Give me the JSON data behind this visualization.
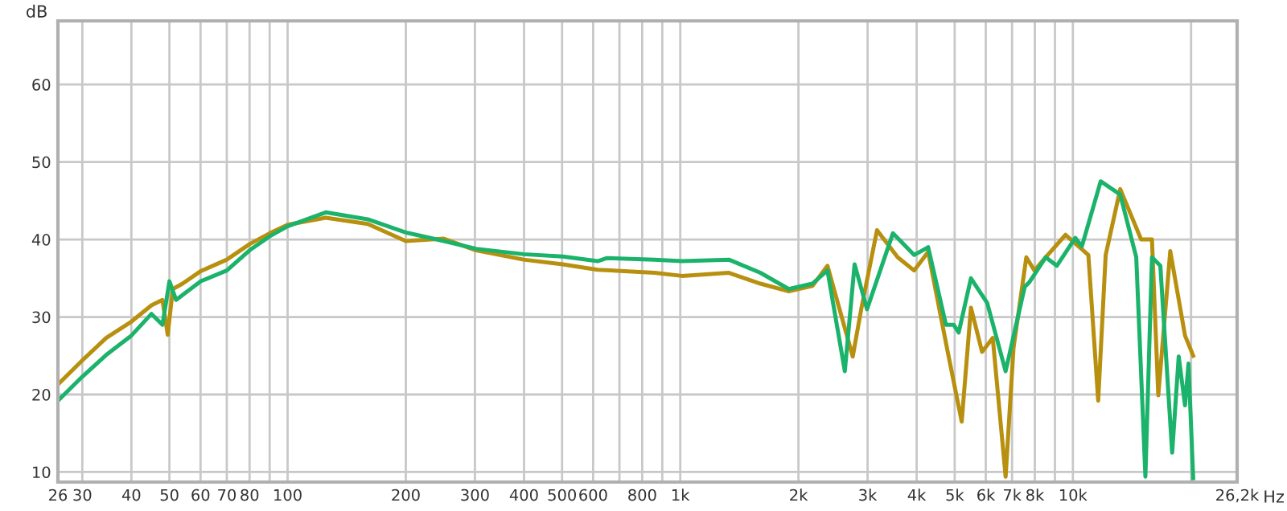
{
  "chart_data": {
    "type": "line",
    "ylabel": "dB",
    "xlabel": "Hz",
    "log": "x",
    "grid": true,
    "marker": "none",
    "line_style": "solid",
    "xlim": [
      26,
      26200
    ],
    "ylim": [
      8.7,
      68.2
    ],
    "xticks": [
      26,
      30,
      40,
      50,
      60,
      70,
      80,
      {
        "value": 90,
        "label": null
      },
      100,
      200,
      300,
      400,
      500,
      600,
      {
        "value": 700,
        "label": null
      },
      800,
      {
        "value": 900,
        "label": null
      },
      {
        "value": 1000,
        "label": "1k"
      },
      {
        "value": 2000,
        "label": "2k"
      },
      {
        "value": 3000,
        "label": "3k"
      },
      {
        "value": 4000,
        "label": "4k"
      },
      {
        "value": 5000,
        "label": "5k"
      },
      {
        "value": 6000,
        "label": "6k"
      },
      {
        "value": 7000,
        "label": "7k"
      },
      {
        "value": 8000,
        "label": "8k"
      },
      {
        "value": 9000,
        "label": null
      },
      {
        "value": 10000,
        "label": "10k"
      },
      {
        "value": 20000,
        "label": null
      },
      {
        "value": 26200,
        "label": "26,2k"
      }
    ],
    "yticks": [
      10,
      20,
      30,
      40,
      50,
      60
    ],
    "series": [
      {
        "color": "#b8900f",
        "x": [
          26,
          30,
          34.5,
          40,
          45,
          48,
          49.5,
          51,
          54,
          60,
          70,
          80,
          90,
          100,
          125,
          160,
          200,
          250,
          302,
          399,
          502,
          616,
          860,
          1010,
          1330,
          1600,
          1890,
          2170,
          2371,
          2750,
          2890,
          3170,
          3580,
          3940,
          4280,
          4800,
          5210,
          5500,
          5870,
          6250,
          6740,
          7060,
          7610,
          7980,
          8530,
          9580,
          10950,
          11600,
          12120,
          13200,
          14920,
          15900,
          16500,
          17700,
          19300,
          20250
        ],
        "values": [
          21.3,
          24.4,
          27.3,
          29.4,
          31.5,
          32.2,
          27.7,
          33.6,
          34.3,
          35.9,
          37.4,
          39.4,
          40.8,
          41.9,
          42.8,
          42.0,
          39.8,
          40.1,
          38.6,
          37.4,
          36.8,
          36.1,
          35.7,
          35.3,
          35.7,
          34.3,
          33.3,
          34.0,
          36.6,
          24.9,
          31.0,
          41.2,
          37.7,
          36.0,
          38.4,
          25.5,
          16.5,
          31.2,
          25.5,
          27.3,
          9.4,
          26.0,
          37.7,
          36.0,
          37.7,
          40.6,
          38.0,
          19.2,
          38.0,
          46.5,
          40.0,
          40.0,
          19.9,
          38.5,
          27.6,
          25.0
        ]
      },
      {
        "color": "#1bb36b",
        "x": [
          26,
          30,
          34.5,
          40,
          45,
          48,
          50,
          52,
          60,
          70,
          80,
          90,
          100,
          125,
          160,
          200,
          250,
          302,
          399,
          502,
          616,
          651,
          860,
          1010,
          1330,
          1600,
          1890,
          2170,
          2371,
          2625,
          2780,
          2990,
          3480,
          3940,
          4280,
          4750,
          4970,
          5120,
          5500,
          6050,
          6740,
          7540,
          7750,
          8530,
          9100,
          10140,
          10540,
          11770,
          13200,
          14500,
          15300,
          15900,
          16700,
          17900,
          18600,
          19300,
          19700,
          20250
        ],
        "values": [
          19.2,
          22.3,
          25.1,
          27.6,
          30.4,
          29.0,
          34.6,
          32.2,
          34.6,
          36.0,
          38.6,
          40.4,
          41.7,
          43.5,
          42.6,
          40.9,
          39.8,
          38.8,
          38.1,
          37.8,
          37.2,
          37.6,
          37.4,
          37.2,
          37.4,
          35.7,
          33.6,
          34.3,
          36.0,
          23.0,
          36.8,
          31.0,
          40.8,
          38.0,
          39.0,
          29.0,
          29.0,
          28.0,
          35.0,
          31.8,
          23.0,
          33.9,
          34.5,
          37.7,
          36.6,
          40.2,
          39.1,
          47.5,
          45.8,
          37.7,
          9.4,
          37.7,
          36.6,
          12.5,
          24.9,
          18.6,
          24.0,
          9.2
        ]
      }
    ]
  }
}
